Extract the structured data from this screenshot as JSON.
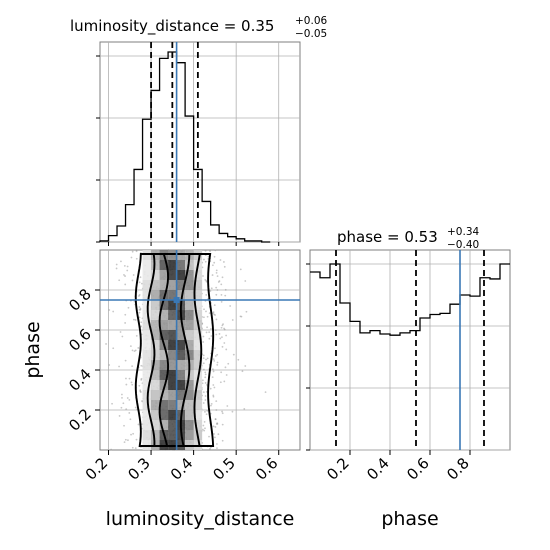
{
  "chart_data": {
    "type": "corner",
    "parameters": [
      "luminosity_distance",
      "phase"
    ],
    "axis_labels": {
      "x_bottom_left": "luminosity_distance",
      "x_bottom_right": "phase",
      "y_left": "phase"
    },
    "titles": [
      {
        "param": "luminosity_distance",
        "prefix": "luminosity_distance = 0.35",
        "upper": "+0.06",
        "lower": "−0.05"
      },
      {
        "param": "phase",
        "prefix": "phase = 0.53",
        "upper": "+0.34",
        "lower": "−0.40"
      }
    ],
    "luminosity_distance": {
      "xlim": [
        0.18,
        0.65
      ],
      "ticks": [
        "0.2",
        "0.3",
        "0.4",
        "0.5",
        "0.6"
      ],
      "tick_values": [
        0.2,
        0.3,
        0.4,
        0.5,
        0.6
      ],
      "quantiles": [
        0.3,
        0.35,
        0.41
      ],
      "truth": 0.36,
      "hist": {
        "bin_edges": [
          0.18,
          0.2,
          0.22,
          0.24,
          0.26,
          0.28,
          0.3,
          0.32,
          0.34,
          0.36,
          0.38,
          0.4,
          0.42,
          0.44,
          0.46,
          0.48,
          0.5,
          0.52,
          0.54,
          0.56,
          0.58
        ],
        "counts": [
          1,
          6,
          15,
          35,
          68,
          115,
          142,
          172,
          178,
          168,
          118,
          68,
          38,
          16,
          8,
          5,
          3,
          1,
          1,
          0
        ]
      }
    },
    "phase": {
      "range": [
        0.0,
        1.0
      ],
      "ticks": [
        "0.2",
        "0.4",
        "0.6",
        "0.8"
      ],
      "tick_values": [
        0.2,
        0.4,
        0.6,
        0.8
      ],
      "quantiles": [
        0.13,
        0.53,
        0.87
      ],
      "truth": 0.75,
      "hist": {
        "bin_edges": [
          0.0,
          0.05,
          0.1,
          0.15,
          0.2,
          0.25,
          0.3,
          0.35,
          0.4,
          0.45,
          0.5,
          0.55,
          0.6,
          0.65,
          0.7,
          0.75,
          0.8,
          0.85,
          0.9,
          0.95,
          1.0
        ],
        "counts": [
          155,
          150,
          162,
          128,
          112,
          102,
          104,
          101,
          100,
          102,
          104,
          115,
          118,
          119,
          127,
          135,
          134,
          150,
          149,
          162
        ]
      }
    },
    "joint": {
      "levels": 3,
      "density_bins_phase": [
        0.025,
        0.075,
        0.125,
        0.175,
        0.225,
        0.275,
        0.325,
        0.375,
        0.425,
        0.475,
        0.525,
        0.575,
        0.625,
        0.675,
        0.725,
        0.775,
        0.825,
        0.875,
        0.925,
        0.975
      ],
      "density_bins_distance": [
        0.29,
        0.31,
        0.33,
        0.35,
        0.37,
        0.39,
        0.41
      ]
    },
    "hist_yaxis_ticks": 4
  }
}
